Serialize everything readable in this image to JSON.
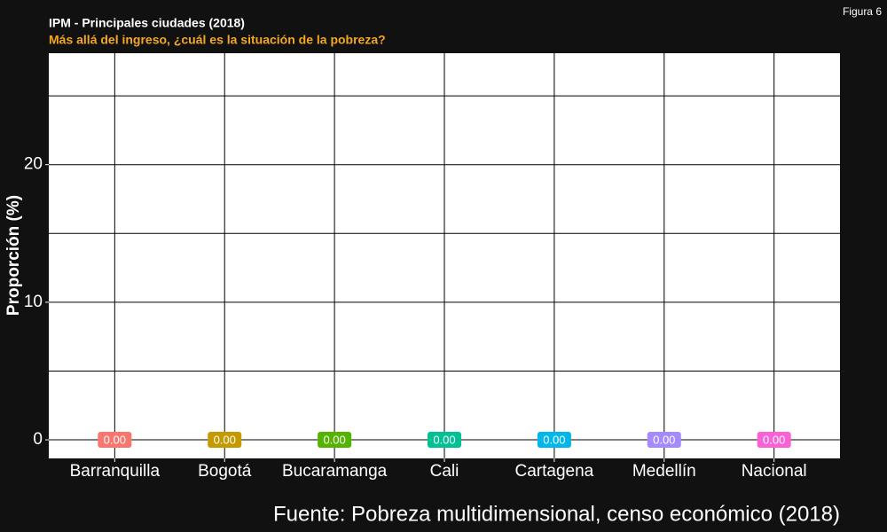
{
  "figure_label": "Figura 6",
  "chart_data": {
    "type": "point_label",
    "title": "IPM - Principales ciudades (2018)",
    "subtitle": "Más allá del ingreso, ¿cuál es la situación de la pobreza?",
    "y_label": "Proporción (%)",
    "caption": "Fuente: Pobreza multidimensional, censo económico (2018)",
    "categories": [
      "Barranquilla",
      "Bogotá",
      "Bucaramanga",
      "Cali",
      "Cartagena",
      "Medellín",
      "Nacional"
    ],
    "values": [
      0,
      0,
      0,
      0,
      0,
      0,
      0
    ],
    "value_labels": [
      "0.00",
      "0.00",
      "0.00",
      "0.00",
      "0.00",
      "0.00",
      "0.00"
    ],
    "colors": [
      "#F8766D",
      "#C49A00",
      "#53B400",
      "#00C094",
      "#00B6EB",
      "#A58AFF",
      "#FB61D7"
    ],
    "ylim": [
      -1.35,
      28.1
    ],
    "yticks": [
      0,
      10,
      20
    ],
    "yminor": [
      5,
      15,
      25
    ],
    "grid": true
  }
}
